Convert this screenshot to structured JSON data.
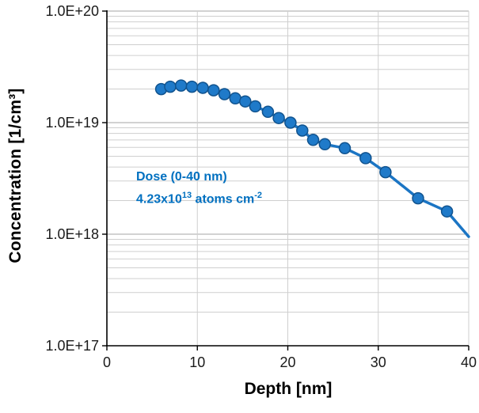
{
  "chart_data": {
    "type": "line",
    "title": "",
    "xlabel": "Depth [nm]",
    "ylabel": "Concentration [1/cm³]",
    "xlim": [
      0,
      40
    ],
    "ylog_exp": [
      17,
      20
    ],
    "x_ticks": [
      0,
      10,
      20,
      30,
      40
    ],
    "x_tick_labels": [
      "0",
      "10",
      "20",
      "30",
      "40"
    ],
    "y_tick_exps": [
      17,
      18,
      19,
      20
    ],
    "y_tick_labels": [
      "1.0E+17",
      "1.0E+18",
      "1.0E+19",
      "1.0E+20"
    ],
    "grid": {
      "horizontal_log_minor": true,
      "horizontal_major": true,
      "vertical_major": true
    },
    "legend": "none",
    "annotation": {
      "line1": "Dose (0-40 nm)",
      "value_base": "4.23x10",
      "value_exp": "13",
      "units": " atoms cm",
      "units_exp": "-2"
    },
    "colors": {
      "line": "#1b75c4",
      "marker_fill": "#1f7ac9",
      "marker_stroke": "#11538e",
      "annotation_text": "#0070c0",
      "minor_grid": "#cfcfcf",
      "major_grid": "#a6a6a6",
      "axis": "#000000",
      "tick_text": "#1a1a1a"
    },
    "series": [
      {
        "name": "concentration-profile",
        "marker": "circle",
        "last_point_no_marker": true,
        "x": [
          6.0,
          7.0,
          8.2,
          9.4,
          10.6,
          11.8,
          13.0,
          14.2,
          15.3,
          16.4,
          17.8,
          19.0,
          20.3,
          21.6,
          22.8,
          24.1,
          26.3,
          28.6,
          30.8,
          34.4,
          37.6,
          40.0
        ],
        "y": [
          2e+19,
          2.1e+19,
          2.15e+19,
          2.1e+19,
          2.05e+19,
          1.95e+19,
          1.8e+19,
          1.65e+19,
          1.55e+19,
          1.4e+19,
          1.25e+19,
          1.1e+19,
          1e+19,
          8.5e+18,
          7e+18,
          6.4e+18,
          5.9e+18,
          4.8e+18,
          3.6e+18,
          2.1e+18,
          1.6e+18,
          9.5e+17
        ]
      }
    ]
  }
}
